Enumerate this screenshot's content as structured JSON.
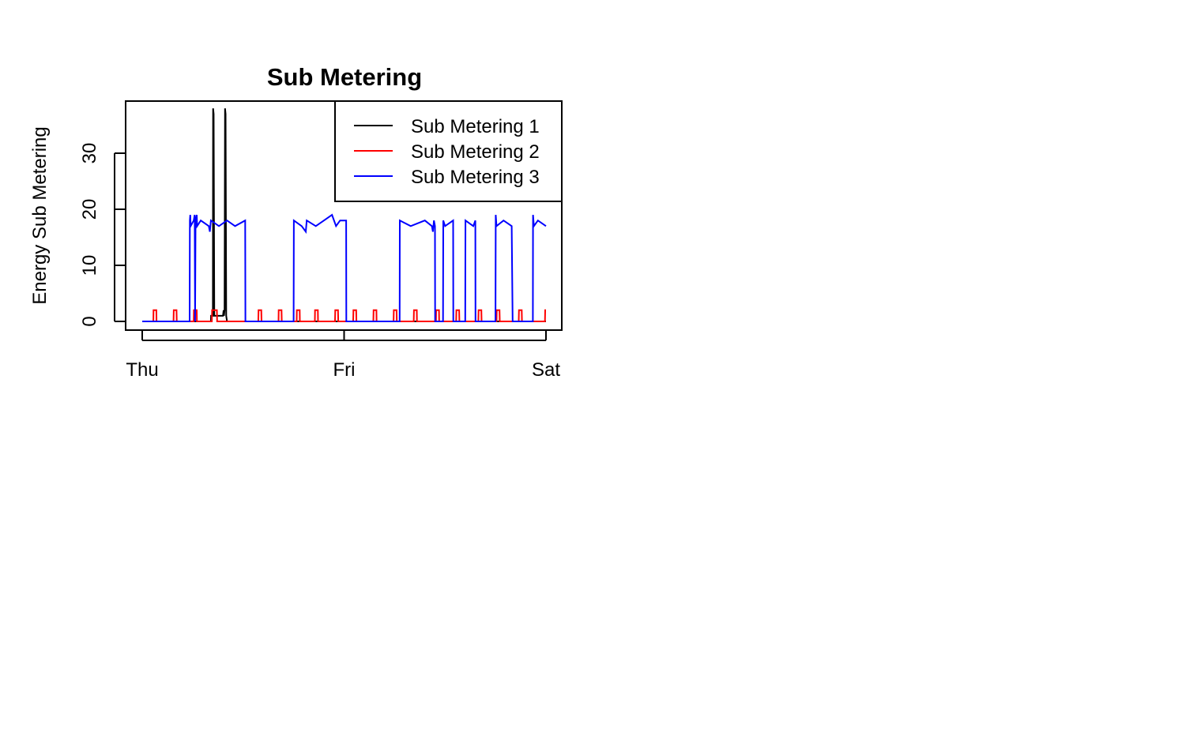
{
  "chart_data": {
    "type": "line",
    "title": "Sub Metering",
    "xlabel": "",
    "ylabel": "Energy Sub Metering",
    "xlim": [
      0,
      2
    ],
    "ylim": [
      0,
      38
    ],
    "x_tick_labels": [
      "Thu",
      "Fri",
      "Sat"
    ],
    "x_tick_values": [
      0,
      1,
      2
    ],
    "y_ticks": [
      0,
      10,
      20,
      30
    ],
    "x_units": "days since Thu 00:00",
    "grid": false,
    "legend": {
      "placement": "top-right",
      "entries": [
        "Sub Metering 1",
        "Sub Metering 2",
        "Sub Metering 3"
      ]
    },
    "series": [
      {
        "name": "Sub Metering 1",
        "color": "#000000",
        "points": [
          [
            0,
            0
          ],
          [
            0.34,
            0
          ],
          [
            0.341,
            1
          ],
          [
            0.35,
            1
          ],
          [
            0.351,
            38
          ],
          [
            0.354,
            37
          ],
          [
            0.357,
            1
          ],
          [
            0.39,
            1
          ],
          [
            0.4,
            1
          ],
          [
            0.403,
            2
          ],
          [
            0.405,
            1
          ],
          [
            0.408,
            2
          ],
          [
            0.41,
            38
          ],
          [
            0.413,
            37
          ],
          [
            0.416,
            1
          ],
          [
            0.42,
            0
          ],
          [
            2.0,
            0
          ]
        ]
      },
      {
        "name": "Sub Metering 2",
        "color": "#ff0000",
        "points": [
          [
            0,
            0
          ],
          [
            0.055,
            0
          ],
          [
            0.056,
            2
          ],
          [
            0.07,
            2
          ],
          [
            0.071,
            0
          ],
          [
            0.155,
            0
          ],
          [
            0.156,
            2
          ],
          [
            0.17,
            2
          ],
          [
            0.171,
            0
          ],
          [
            0.255,
            0
          ],
          [
            0.256,
            2
          ],
          [
            0.27,
            2
          ],
          [
            0.271,
            0
          ],
          [
            0.345,
            0
          ],
          [
            0.346,
            2
          ],
          [
            0.37,
            2
          ],
          [
            0.371,
            0
          ],
          [
            0.575,
            0
          ],
          [
            0.576,
            2
          ],
          [
            0.59,
            2
          ],
          [
            0.591,
            0
          ],
          [
            0.675,
            0
          ],
          [
            0.676,
            2
          ],
          [
            0.69,
            2
          ],
          [
            0.691,
            0
          ],
          [
            0.765,
            0
          ],
          [
            0.766,
            2
          ],
          [
            0.78,
            2
          ],
          [
            0.781,
            0
          ],
          [
            0.855,
            0
          ],
          [
            0.856,
            2
          ],
          [
            0.87,
            2
          ],
          [
            0.871,
            0
          ],
          [
            0.955,
            0
          ],
          [
            0.956,
            2
          ],
          [
            0.97,
            2
          ],
          [
            0.971,
            0
          ],
          [
            1.045,
            0
          ],
          [
            1.046,
            2
          ],
          [
            1.06,
            2
          ],
          [
            1.061,
            0
          ],
          [
            1.145,
            0
          ],
          [
            1.146,
            2
          ],
          [
            1.16,
            2
          ],
          [
            1.161,
            0
          ],
          [
            1.245,
            0
          ],
          [
            1.246,
            2
          ],
          [
            1.26,
            2
          ],
          [
            1.261,
            0
          ],
          [
            1.345,
            0
          ],
          [
            1.346,
            2
          ],
          [
            1.36,
            2
          ],
          [
            1.361,
            0
          ],
          [
            1.455,
            0
          ],
          [
            1.456,
            2
          ],
          [
            1.47,
            2
          ],
          [
            1.471,
            0
          ],
          [
            1.555,
            0
          ],
          [
            1.556,
            2
          ],
          [
            1.57,
            2
          ],
          [
            1.571,
            0
          ],
          [
            1.665,
            0
          ],
          [
            1.666,
            2
          ],
          [
            1.68,
            2
          ],
          [
            1.681,
            0
          ],
          [
            1.755,
            0
          ],
          [
            1.756,
            2
          ],
          [
            1.77,
            2
          ],
          [
            1.771,
            0
          ],
          [
            1.865,
            0
          ],
          [
            1.866,
            2
          ],
          [
            1.88,
            2
          ],
          [
            1.881,
            0
          ],
          [
            1.995,
            0
          ],
          [
            1.996,
            2
          ],
          [
            2.0,
            2
          ]
        ]
      },
      {
        "name": "Sub Metering 3",
        "color": "#0000ff",
        "points": [
          [
            0,
            0
          ],
          [
            0.235,
            0
          ],
          [
            0.236,
            18
          ],
          [
            0.238,
            19
          ],
          [
            0.24,
            17
          ],
          [
            0.255,
            18
          ],
          [
            0.26,
            19
          ],
          [
            0.262,
            0
          ],
          [
            0.264,
            18
          ],
          [
            0.27,
            19
          ],
          [
            0.272,
            17
          ],
          [
            0.29,
            18
          ],
          [
            0.33,
            17
          ],
          [
            0.335,
            16
          ],
          [
            0.34,
            18
          ],
          [
            0.38,
            17
          ],
          [
            0.42,
            18
          ],
          [
            0.46,
            17
          ],
          [
            0.51,
            18
          ],
          [
            0.511,
            0
          ],
          [
            0.75,
            0
          ],
          [
            0.751,
            18
          ],
          [
            0.79,
            17
          ],
          [
            0.81,
            16
          ],
          [
            0.815,
            18
          ],
          [
            0.86,
            17
          ],
          [
            0.9,
            18
          ],
          [
            0.94,
            19
          ],
          [
            0.96,
            17
          ],
          [
            0.98,
            18
          ],
          [
            1.01,
            18
          ],
          [
            1.011,
            0
          ],
          [
            1.275,
            0
          ],
          [
            1.276,
            18
          ],
          [
            1.33,
            17
          ],
          [
            1.4,
            18
          ],
          [
            1.435,
            17
          ],
          [
            1.44,
            16
          ],
          [
            1.445,
            18
          ],
          [
            1.45,
            17
          ],
          [
            1.451,
            0
          ],
          [
            1.49,
            0
          ],
          [
            1.491,
            18
          ],
          [
            1.5,
            17
          ],
          [
            1.54,
            18
          ],
          [
            1.541,
            0
          ],
          [
            1.6,
            0
          ],
          [
            1.601,
            18
          ],
          [
            1.64,
            17
          ],
          [
            1.65,
            18
          ],
          [
            1.651,
            0
          ],
          [
            1.75,
            0
          ],
          [
            1.751,
            19
          ],
          [
            1.755,
            17
          ],
          [
            1.79,
            18
          ],
          [
            1.83,
            17
          ],
          [
            1.835,
            0
          ],
          [
            1.935,
            0
          ],
          [
            1.936,
            19
          ],
          [
            1.94,
            17
          ],
          [
            1.96,
            18
          ],
          [
            2.0,
            17
          ]
        ]
      }
    ]
  }
}
